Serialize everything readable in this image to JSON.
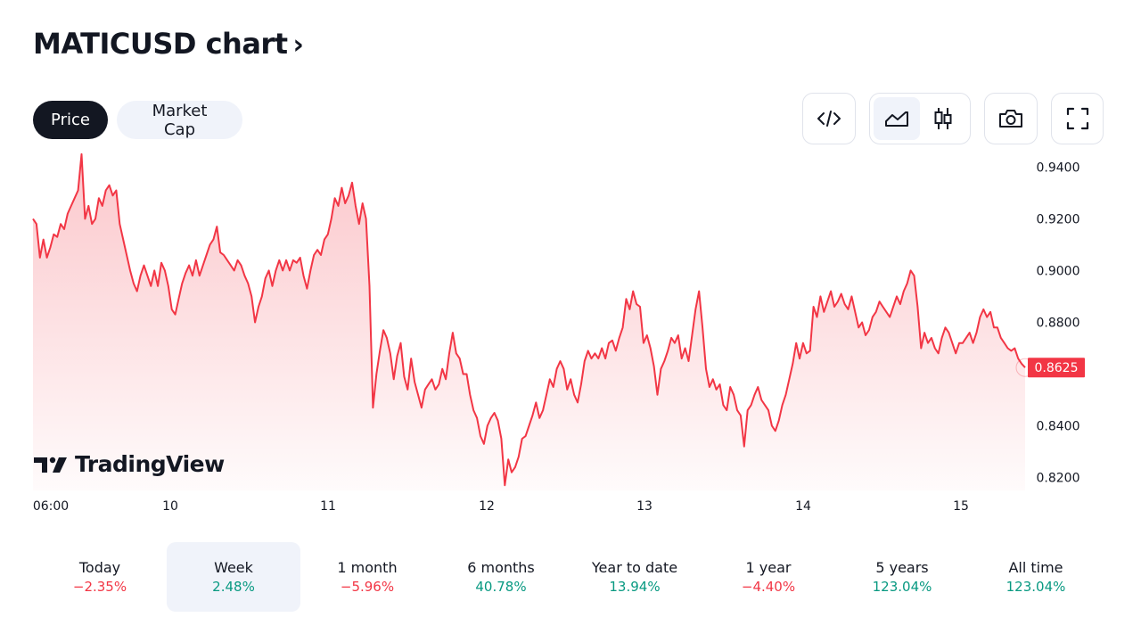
{
  "page": {
    "title": "MATICUSD chart"
  },
  "tabs": {
    "price": "Price",
    "market_cap": "Market Cap"
  },
  "toolbar": {
    "embed": "code-icon",
    "area": "area-chart-icon",
    "candles": "candlestick-icon",
    "snapshot": "camera-icon",
    "fullscreen": "fullscreen-icon"
  },
  "logo": {
    "text": "TradingView"
  },
  "colors": {
    "line": "#f23645",
    "negative": "#f23645",
    "positive": "#089981",
    "dark": "#131722"
  },
  "chart_data": {
    "type": "area",
    "x_ticks": [
      "06:00",
      "10",
      "11",
      "12",
      "13",
      "14",
      "15"
    ],
    "y_ticks": [
      "0.9400",
      "0.9200",
      "0.9000",
      "0.8800",
      "0.8400",
      "0.8200"
    ],
    "ylim": [
      0.815,
      0.946
    ],
    "last_price_label": "0.8625",
    "grid": false,
    "series": [
      {
        "values": [
          0.92,
          0.918,
          0.905,
          0.912,
          0.905,
          0.909,
          0.914,
          0.913,
          0.918,
          0.916,
          0.922,
          0.925,
          0.928,
          0.931,
          0.945,
          0.92,
          0.925,
          0.918,
          0.92,
          0.928,
          0.925,
          0.931,
          0.933,
          0.929,
          0.931,
          0.918,
          0.912,
          0.906,
          0.9,
          0.895,
          0.892,
          0.898,
          0.902,
          0.898,
          0.894,
          0.9,
          0.894,
          0.903,
          0.9,
          0.894,
          0.885,
          0.883,
          0.889,
          0.895,
          0.899,
          0.902,
          0.898,
          0.904,
          0.898,
          0.902,
          0.906,
          0.91,
          0.912,
          0.917,
          0.907,
          0.906,
          0.904,
          0.902,
          0.9,
          0.904,
          0.902,
          0.898,
          0.895,
          0.89,
          0.88,
          0.886,
          0.89,
          0.897,
          0.9,
          0.894,
          0.9,
          0.904,
          0.9,
          0.904,
          0.9,
          0.904,
          0.903,
          0.905,
          0.898,
          0.893,
          0.9,
          0.906,
          0.908,
          0.906,
          0.912,
          0.914,
          0.92,
          0.928,
          0.925,
          0.932,
          0.926,
          0.929,
          0.934,
          0.925,
          0.918,
          0.926,
          0.92,
          0.894,
          0.847,
          0.86,
          0.869,
          0.877,
          0.874,
          0.868,
          0.858,
          0.867,
          0.872,
          0.859,
          0.854,
          0.866,
          0.857,
          0.852,
          0.847,
          0.854,
          0.856,
          0.858,
          0.854,
          0.856,
          0.862,
          0.858,
          0.868,
          0.876,
          0.868,
          0.866,
          0.86,
          0.86,
          0.852,
          0.846,
          0.843,
          0.836,
          0.833,
          0.84,
          0.843,
          0.845,
          0.842,
          0.835,
          0.817,
          0.827,
          0.822,
          0.824,
          0.828,
          0.835,
          0.836,
          0.84,
          0.844,
          0.849,
          0.843,
          0.846,
          0.852,
          0.858,
          0.855,
          0.862,
          0.865,
          0.862,
          0.854,
          0.858,
          0.852,
          0.849,
          0.856,
          0.865,
          0.869,
          0.866,
          0.868,
          0.866,
          0.87,
          0.866,
          0.872,
          0.873,
          0.869,
          0.874,
          0.878,
          0.889,
          0.885,
          0.892,
          0.887,
          0.886,
          0.872,
          0.875,
          0.87,
          0.863,
          0.852,
          0.862,
          0.865,
          0.869,
          0.874,
          0.872,
          0.875,
          0.866,
          0.87,
          0.865,
          0.875,
          0.885,
          0.892,
          0.878,
          0.862,
          0.855,
          0.858,
          0.854,
          0.856,
          0.848,
          0.846,
          0.855,
          0.852,
          0.846,
          0.844,
          0.832,
          0.846,
          0.848,
          0.852,
          0.855,
          0.85,
          0.848,
          0.846,
          0.84,
          0.838,
          0.842,
          0.848,
          0.852,
          0.858,
          0.864,
          0.872,
          0.866,
          0.872,
          0.868,
          0.869,
          0.886,
          0.882,
          0.89,
          0.884,
          0.888,
          0.892,
          0.886,
          0.888,
          0.891,
          0.887,
          0.885,
          0.89,
          0.884,
          0.878,
          0.88,
          0.875,
          0.877,
          0.882,
          0.884,
          0.888,
          0.886,
          0.884,
          0.882,
          0.886,
          0.89,
          0.887,
          0.892,
          0.895,
          0.9,
          0.898,
          0.886,
          0.87,
          0.876,
          0.872,
          0.874,
          0.87,
          0.868,
          0.874,
          0.878,
          0.876,
          0.872,
          0.868,
          0.872,
          0.872,
          0.874,
          0.876,
          0.872,
          0.876,
          0.882,
          0.885,
          0.882,
          0.884,
          0.878,
          0.878,
          0.874,
          0.872,
          0.87,
          0.869,
          0.87,
          0.866,
          0.864,
          0.8625
        ]
      }
    ]
  },
  "periods": [
    {
      "label": "Today",
      "value": "−2.35%",
      "trend": "neg"
    },
    {
      "label": "Week",
      "value": "2.48%",
      "trend": "pos"
    },
    {
      "label": "1 month",
      "value": "−5.96%",
      "trend": "neg"
    },
    {
      "label": "6 months",
      "value": "40.78%",
      "trend": "pos"
    },
    {
      "label": "Year to date",
      "value": "13.94%",
      "trend": "pos"
    },
    {
      "label": "1 year",
      "value": "−4.40%",
      "trend": "neg"
    },
    {
      "label": "5 years",
      "value": "123.04%",
      "trend": "pos"
    },
    {
      "label": "All time",
      "value": "123.04%",
      "trend": "pos"
    }
  ],
  "selected_period": "Week"
}
